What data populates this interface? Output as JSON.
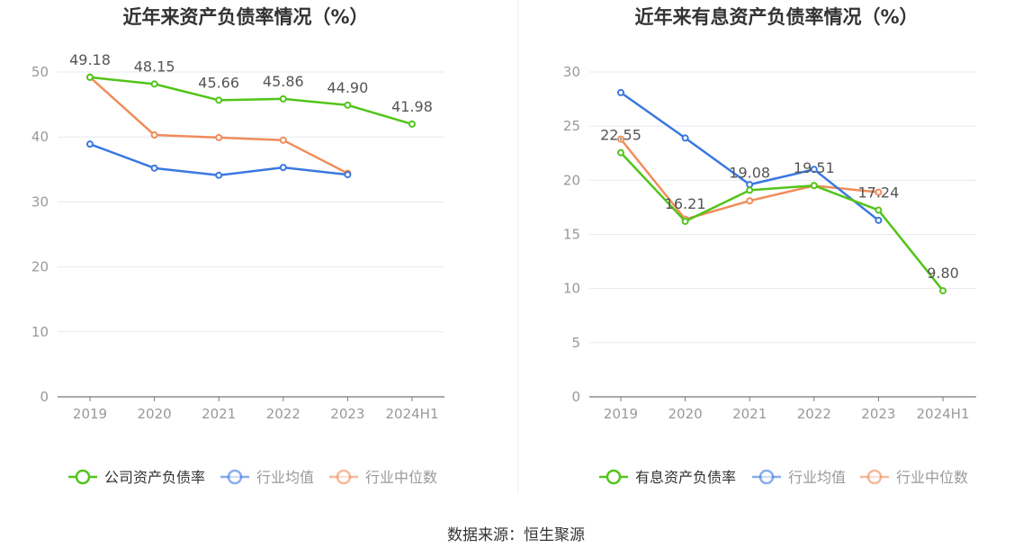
{
  "colors": {
    "company": "#52c41a",
    "industry_avg": "#3a78e0",
    "industry_median": "#f08c5a",
    "grid": "#e6e9f2",
    "axis": "#777777",
    "tick_text": "#999999",
    "title": "#333333",
    "label": "#555555"
  },
  "source": "数据来源：恒生聚源",
  "chart_data": [
    {
      "type": "line",
      "title": "近年来资产负债率情况（%）",
      "categories": [
        "2019",
        "2020",
        "2021",
        "2022",
        "2023",
        "2024H1"
      ],
      "ylim": [
        0,
        50
      ],
      "yticks": [
        "0",
        "10",
        "20",
        "30",
        "40",
        "50"
      ],
      "series": [
        {
          "name": "公司资产负债率",
          "color_key": "company",
          "values": [
            49.18,
            48.15,
            45.66,
            45.86,
            44.9,
            41.98
          ],
          "labels": [
            "49.18",
            "48.15",
            "45.66",
            "45.86",
            "44.90",
            "41.98"
          ]
        },
        {
          "name": "行业均值",
          "color_key": "industry_avg",
          "values": [
            38.9,
            35.2,
            34.1,
            35.3,
            34.2,
            null
          ]
        },
        {
          "name": "行业中位数",
          "color_key": "industry_median",
          "values": [
            49.2,
            40.3,
            39.9,
            39.5,
            34.4,
            null
          ]
        }
      ],
      "legend_position": "bottom"
    },
    {
      "type": "line",
      "title": "近年来有息资产负债率情况（%）",
      "categories": [
        "2019",
        "2020",
        "2021",
        "2022",
        "2023",
        "2024H1"
      ],
      "ylim": [
        0,
        30
      ],
      "yticks": [
        "0",
        "5",
        "10",
        "15",
        "20",
        "25",
        "30"
      ],
      "series": [
        {
          "name": "有息资产负债率",
          "color_key": "company",
          "values": [
            22.55,
            16.21,
            19.08,
            19.51,
            17.24,
            9.8
          ],
          "labels": [
            "22.55",
            "16.21",
            "19.08",
            "19.51",
            "17.24",
            "9.80"
          ]
        },
        {
          "name": "行业均值",
          "color_key": "industry_avg",
          "values": [
            28.1,
            23.9,
            19.6,
            21.0,
            16.3,
            null
          ]
        },
        {
          "name": "行业中位数",
          "color_key": "industry_median",
          "values": [
            23.8,
            16.4,
            18.1,
            19.5,
            18.9,
            null
          ]
        }
      ],
      "legend_position": "bottom"
    }
  ]
}
